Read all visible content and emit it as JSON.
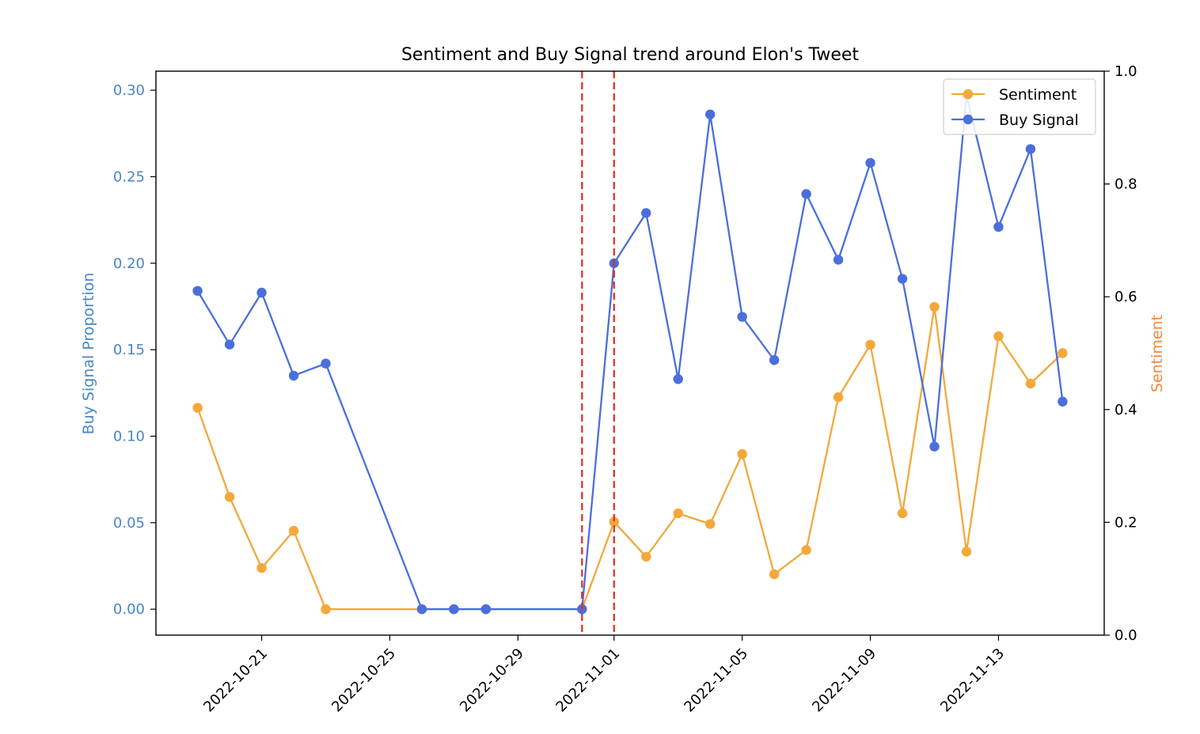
{
  "chart_data": {
    "type": "line",
    "title": "Sentiment and Buy Signal trend around Elon's Tweet",
    "xlabel": "",
    "x_ticks": [
      "2022-10-21",
      "2022-10-25",
      "2022-10-29",
      "2022-11-01",
      "2022-11-05",
      "2022-11-09",
      "2022-11-13"
    ],
    "y_left": {
      "label": "Buy Signal Proportion",
      "range": [
        -0.015,
        0.311
      ],
      "ticks": [
        "0.00",
        "0.05",
        "0.10",
        "0.15",
        "0.20",
        "0.25",
        "0.30"
      ],
      "color": "#4a86c6"
    },
    "y_right": {
      "label": "Sentiment",
      "range": [
        0.0,
        1.0
      ],
      "ticks": [
        "0.0",
        "0.2",
        "0.4",
        "0.6",
        "0.8",
        "1.0"
      ],
      "color": "#f5883a"
    },
    "vlines": [
      "2022-10-31",
      "2022-11-01"
    ],
    "legend": {
      "location": "top-right"
    },
    "series": [
      {
        "name": "Sentiment",
        "axis": "right",
        "color": "#f4a83a",
        "x": [
          "2022-10-19",
          "2022-10-20",
          "2022-10-21",
          "2022-10-22",
          "2022-10-23",
          "2022-10-26",
          "2022-10-27",
          "2022-10-28",
          "2022-10-31",
          "2022-11-01",
          "2022-11-02",
          "2022-11-03",
          "2022-11-04",
          "2022-11-05",
          "2022-11-06",
          "2022-11-07",
          "2022-11-08",
          "2022-11-09",
          "2022-11-10",
          "2022-11-11",
          "2022-11-12",
          "2022-11-13",
          "2022-11-14",
          "2022-11-15"
        ],
        "values": [
          0.403,
          0.245,
          0.119,
          0.185,
          0.046,
          0.046,
          0.046,
          0.046,
          0.046,
          0.201,
          0.139,
          0.216,
          0.197,
          0.321,
          0.108,
          0.151,
          0.422,
          0.515,
          0.216,
          0.582,
          0.148,
          0.53,
          0.446,
          0.5
        ]
      },
      {
        "name": "Buy Signal",
        "axis": "left",
        "color": "#4a6fdc",
        "x": [
          "2022-10-19",
          "2022-10-20",
          "2022-10-21",
          "2022-10-22",
          "2022-10-23",
          "2022-10-26",
          "2022-10-27",
          "2022-10-28",
          "2022-10-31",
          "2022-11-01",
          "2022-11-02",
          "2022-11-03",
          "2022-11-04",
          "2022-11-05",
          "2022-11-06",
          "2022-11-07",
          "2022-11-08",
          "2022-11-09",
          "2022-11-10",
          "2022-11-11",
          "2022-11-12",
          "2022-11-13",
          "2022-11-14",
          "2022-11-15"
        ],
        "values": [
          0.184,
          0.153,
          0.183,
          0.135,
          0.142,
          0.0,
          0.0,
          0.0,
          0.0,
          0.2,
          0.229,
          0.133,
          0.286,
          0.169,
          0.144,
          0.24,
          0.202,
          0.258,
          0.191,
          0.094,
          0.297,
          0.221,
          0.266,
          0.12
        ]
      }
    ]
  }
}
